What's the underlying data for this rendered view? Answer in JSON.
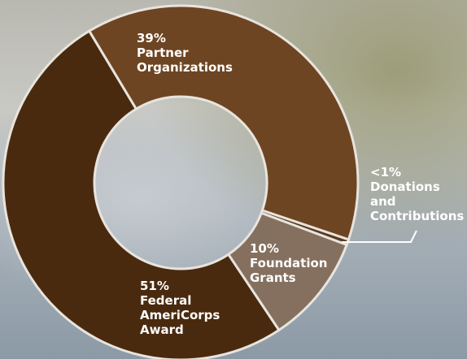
{
  "chart_data": {
    "type": "donut",
    "categories": [
      "Partner Organizations",
      "Donations and Contributions",
      "Foundation Grants",
      "Federal AmeriCorps Award"
    ],
    "values": [
      39,
      0.5,
      10,
      51
    ],
    "value_labels": [
      "39%",
      "<1%",
      "10%",
      "51%"
    ],
    "colors": [
      "#6e4522",
      "#5a3a1e",
      "#85705f",
      "#4a2a0e"
    ]
  }
}
